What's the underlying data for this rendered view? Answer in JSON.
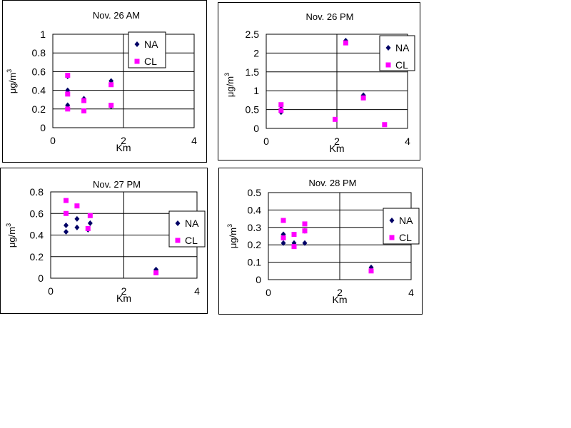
{
  "chart_data": [
    {
      "type": "scatter",
      "title": "Nov. 26 AM",
      "xlabel": "Km",
      "ylabel": "μg/m",
      "ylabel_superscript": "3",
      "xlim": [
        0,
        4
      ],
      "ylim": [
        0,
        1
      ],
      "xticks": [
        "0",
        "2",
        "4"
      ],
      "yticks": [
        "0",
        "0.2",
        "0.4",
        "0.6",
        "0.8",
        "1"
      ],
      "ytick_values": [
        0,
        0.2,
        0.4,
        0.6,
        0.8,
        1
      ],
      "grid": "horizontal",
      "legend_position": "top-right",
      "series": [
        {
          "name": "NA",
          "color": "#000066",
          "marker": "diamond",
          "points": [
            [
              0.42,
              0.24
            ],
            [
              0.42,
              0.4
            ],
            [
              0.42,
              0.55
            ],
            [
              0.88,
              0.31
            ],
            [
              1.65,
              0.5
            ],
            [
              1.65,
              0.23
            ]
          ]
        },
        {
          "name": "CL",
          "color": "#ff00ff",
          "marker": "square",
          "points": [
            [
              0.42,
              0.2
            ],
            [
              0.42,
              0.36
            ],
            [
              0.42,
              0.56
            ],
            [
              0.88,
              0.18
            ],
            [
              0.88,
              0.29
            ],
            [
              1.65,
              0.46
            ],
            [
              1.65,
              0.24
            ]
          ]
        }
      ]
    },
    {
      "type": "scatter",
      "title": "Nov. 26 PM",
      "xlabel": "Km",
      "ylabel": "μg/m",
      "ylabel_superscript": "3",
      "xlim": [
        0,
        4
      ],
      "ylim": [
        0,
        2.5
      ],
      "xticks": [
        "0",
        "2",
        "4"
      ],
      "yticks": [
        "0",
        "0.5",
        "1",
        "1.5",
        "2",
        "2.5"
      ],
      "ytick_values": [
        0,
        0.5,
        1,
        1.5,
        2,
        2.5
      ],
      "grid": "horizontal",
      "legend_position": "top-right",
      "series": [
        {
          "name": "NA",
          "color": "#000066",
          "marker": "diamond",
          "points": [
            [
              0.42,
              0.43
            ],
            [
              0.42,
              0.52
            ],
            [
              2.25,
              2.33
            ],
            [
              2.75,
              0.88
            ]
          ]
        },
        {
          "name": "CL",
          "color": "#ff00ff",
          "marker": "square",
          "points": [
            [
              0.42,
              0.48
            ],
            [
              0.42,
              0.63
            ],
            [
              1.95,
              0.24
            ],
            [
              2.25,
              2.27
            ],
            [
              2.75,
              0.81
            ],
            [
              3.35,
              0.1
            ]
          ]
        }
      ]
    },
    {
      "type": "scatter",
      "title": "Nov. 27 PM",
      "xlabel": "Km",
      "ylabel": "μg/m",
      "ylabel_superscript": "3",
      "xlim": [
        0,
        4
      ],
      "ylim": [
        0,
        0.8
      ],
      "xticks": [
        "0",
        "2",
        "4"
      ],
      "yticks": [
        "0",
        "0.2",
        "0.4",
        "0.6",
        "0.8"
      ],
      "ytick_values": [
        0,
        0.2,
        0.4,
        0.6,
        0.8
      ],
      "grid": "horizontal",
      "legend_position": "right",
      "series": [
        {
          "name": "NA",
          "color": "#000066",
          "marker": "diamond",
          "points": [
            [
              0.42,
              0.43
            ],
            [
              0.42,
              0.49
            ],
            [
              0.72,
              0.47
            ],
            [
              0.72,
              0.55
            ],
            [
              1.02,
              0.45
            ],
            [
              1.08,
              0.51
            ],
            [
              2.88,
              0.08
            ]
          ]
        },
        {
          "name": "CL",
          "color": "#ff00ff",
          "marker": "square",
          "points": [
            [
              0.42,
              0.72
            ],
            [
              0.42,
              0.6
            ],
            [
              0.72,
              0.67
            ],
            [
              1.02,
              0.46
            ],
            [
              1.08,
              0.58
            ],
            [
              2.88,
              0.05
            ]
          ]
        }
      ]
    },
    {
      "type": "scatter",
      "title": "Nov. 28 PM",
      "xlabel": "Km",
      "ylabel": "μg/m",
      "ylabel_superscript": "3",
      "xlim": [
        0,
        4
      ],
      "ylim": [
        0,
        0.5
      ],
      "xticks": [
        "0",
        "2",
        "4"
      ],
      "yticks": [
        "0",
        "0.1",
        "0.2",
        "0.3",
        "0.4",
        "0.5"
      ],
      "ytick_values": [
        0,
        0.1,
        0.2,
        0.3,
        0.4,
        0.5
      ],
      "grid": "horizontal",
      "legend_position": "right",
      "series": [
        {
          "name": "NA",
          "color": "#000066",
          "marker": "diamond",
          "points": [
            [
              0.42,
              0.21
            ],
            [
              0.42,
              0.26
            ],
            [
              0.72,
              0.21
            ],
            [
              1.02,
              0.21
            ],
            [
              1.02,
              0.28
            ],
            [
              2.88,
              0.07
            ]
          ]
        },
        {
          "name": "CL",
          "color": "#ff00ff",
          "marker": "square",
          "points": [
            [
              0.42,
              0.34
            ],
            [
              0.42,
              0.24
            ],
            [
              0.72,
              0.26
            ],
            [
              0.72,
              0.19
            ],
            [
              1.02,
              0.32
            ],
            [
              1.02,
              0.28
            ],
            [
              2.88,
              0.05
            ]
          ]
        }
      ]
    }
  ]
}
